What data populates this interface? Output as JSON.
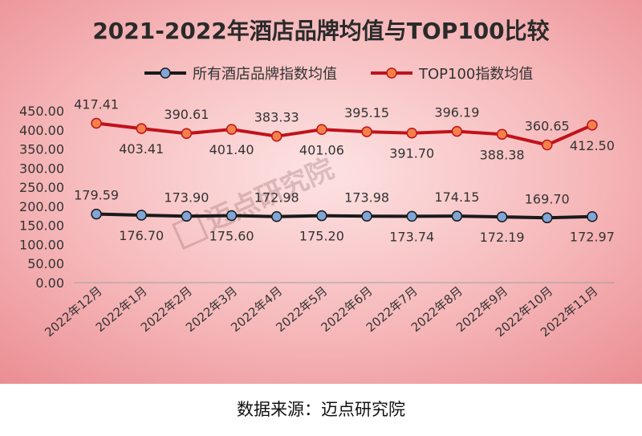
{
  "chart_data": {
    "type": "line",
    "title": "2021-2022年酒店品牌均值与TOP100比较",
    "categories": [
      "2022年12月",
      "2022年1月",
      "2022年2月",
      "2022年3月",
      "2022年4月",
      "2022年5月",
      "2022年6月",
      "2022年7月",
      "2022年8月",
      "2022年9月",
      "2022年10月",
      "2022年11月"
    ],
    "series": [
      {
        "name": "所有酒店品牌指数均值",
        "color": "#1a1a1a",
        "marker_color": "#7fa6d6",
        "values": [
          179.59,
          176.7,
          173.9,
          175.6,
          172.98,
          175.2,
          173.98,
          173.74,
          174.15,
          172.19,
          169.7,
          172.97
        ],
        "labels": [
          "179.59",
          "176.70",
          "173.90",
          "175.60",
          "172.98",
          "175.20",
          "173.98",
          "173.74",
          "174.15",
          "172.19",
          "169.70",
          "172.97"
        ],
        "label_side": [
          "above",
          "below",
          "above",
          "below",
          "above",
          "below",
          "above",
          "below",
          "above",
          "below",
          "above",
          "below"
        ]
      },
      {
        "name": "TOP100指数均值",
        "color": "#c0121b",
        "marker_color": "#f2824a",
        "values": [
          417.41,
          403.41,
          390.61,
          401.4,
          383.33,
          401.06,
          395.15,
          391.7,
          396.19,
          388.38,
          360.65,
          412.5
        ],
        "labels": [
          "417.41",
          "403.41",
          "390.61",
          "401.40",
          "383.33",
          "401.06",
          "395.15",
          "391.70",
          "396.19",
          "388.38",
          "360.65",
          "412.50"
        ],
        "label_side": [
          "above",
          "below",
          "above",
          "below",
          "above",
          "below",
          "above",
          "below",
          "above",
          "below",
          "above",
          "below"
        ]
      }
    ],
    "ylim": [
      0,
      450
    ],
    "yticks": [
      "0.00",
      "50.00",
      "100.00",
      "150.00",
      "200.00",
      "250.00",
      "300.00",
      "350.00",
      "400.00",
      "450.00"
    ],
    "ytick_values": [
      0,
      50,
      100,
      150,
      200,
      250,
      300,
      350,
      400,
      450
    ],
    "grid": false,
    "legend_position": "top-center",
    "background_color": "#f4a7aa",
    "watermark": "迈点研究院"
  },
  "source_text": "数据来源：迈点研究院"
}
